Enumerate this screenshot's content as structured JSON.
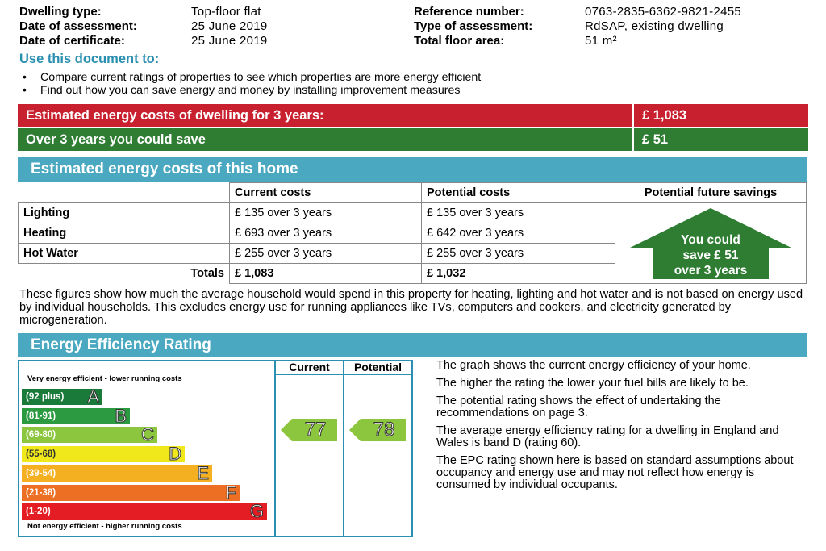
{
  "header": {
    "dwelling_type_label": "Dwelling type:",
    "dwelling_type_value": "Top-floor flat",
    "assessment_date_label": "Date of assessment:",
    "assessment_date_value": "25  June  2019",
    "certificate_date_label": "Date of certificate:",
    "certificate_date_value": "25  June  2019",
    "reference_label": "Reference number:",
    "reference_value": "0763-2835-6362-9821-2455",
    "assessment_type_label": "Type of assessment:",
    "assessment_type_value": "RdSAP, existing dwelling",
    "floor_area_label": "Total floor area:",
    "floor_area_value": "51 m²"
  },
  "use_document": {
    "heading": "Use this document to:",
    "bullets": [
      "Compare current ratings of properties to see which properties are more energy efficient",
      "Find out how you can save energy and money by installing improvement measures"
    ]
  },
  "summary": {
    "cost_label": "Estimated energy costs of dwelling for 3 years:",
    "cost_value": "£ 1,083",
    "save_label": "Over 3 years you could save",
    "save_value": "£ 51"
  },
  "costs_section": {
    "heading": "Estimated energy costs of this home",
    "col_current": "Current costs",
    "col_potential": "Potential costs",
    "col_savings": "Potential future savings",
    "rows": [
      {
        "label": "Lighting",
        "current": "£ 135 over 3 years",
        "potential": "£ 135 over 3 years"
      },
      {
        "label": "Heating",
        "current": "£ 693 over 3 years",
        "potential": "£ 642 over 3 years"
      },
      {
        "label": "Hot Water",
        "current": "£ 255 over 3 years",
        "potential": "£ 255 over 3 years"
      }
    ],
    "totals_label": "Totals",
    "totals_current": "£ 1,083",
    "totals_potential": "£ 1,032",
    "savings_arrow": [
      "You could",
      "save £ 51",
      "over 3 years"
    ],
    "savings_arrow_color": "#2e7d32",
    "note": "These figures show how much the average household would spend in this property for heating, lighting and hot water and is not based on energy used by individual households. This excludes energy use for running appliances like TVs, computers and cookers, and electricity generated by microgeneration."
  },
  "rating_section": {
    "heading": "Energy Efficiency Rating",
    "col_current": "Current",
    "col_potential": "Potential",
    "top_caption": "Very energy efficient - lower running costs",
    "bottom_caption": "Not energy efficient - higher running costs",
    "bands": [
      {
        "range": "(92 plus)",
        "letter": "A",
        "color": "#1a7a3a"
      },
      {
        "range": "(81-91)",
        "letter": "B",
        "color": "#2b9a40"
      },
      {
        "range": "(69-80)",
        "letter": "C",
        "color": "#8cc63f"
      },
      {
        "range": "(55-68)",
        "letter": "D",
        "color": "#f0e81a"
      },
      {
        "range": "(39-54)",
        "letter": "E",
        "color": "#f5b021"
      },
      {
        "range": "(21-38)",
        "letter": "F",
        "color": "#ed6f23"
      },
      {
        "range": "(1-20)",
        "letter": "G",
        "color": "#e31d23"
      }
    ],
    "current_rating": "77",
    "potential_rating": "78",
    "rating_arrow_color": "#8cc63f",
    "explanations": [
      "The graph shows the current energy efficiency of your home.",
      "The higher the rating the lower your fuel bills are likely to be.",
      "The potential rating shows the effect of undertaking the recommendations on page 3.",
      "The average energy efficiency rating for a dwelling in England and Wales is band D (rating 60).",
      "The EPC rating shown here is based on standard assumptions about occupancy and energy use and may not reflect how energy is consumed by individual occupants."
    ]
  }
}
